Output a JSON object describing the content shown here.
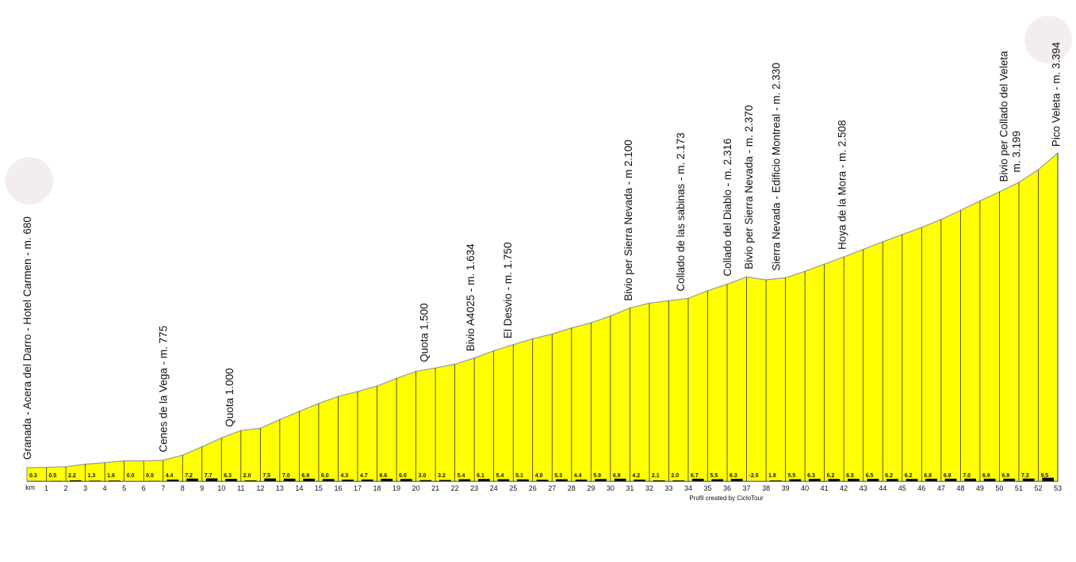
{
  "chart_data": {
    "type": "area",
    "x_label": "km",
    "credit": "Profil created by CicloTour",
    "color": "#ffff00",
    "x": [
      0,
      1,
      2,
      3,
      4,
      5,
      6,
      7,
      8,
      9,
      10,
      11,
      12,
      13,
      14,
      15,
      16,
      17,
      18,
      19,
      20,
      21,
      22,
      23,
      24,
      25,
      26,
      27,
      28,
      29,
      30,
      31,
      32,
      33,
      34,
      35,
      36,
      37,
      38,
      39,
      40,
      41,
      42,
      43,
      44,
      45,
      46,
      47,
      48,
      49,
      50,
      51,
      52,
      53
    ],
    "elevation": [
      680,
      683,
      688,
      710,
      723,
      739,
      739,
      744,
      788,
      860,
      937,
      1000,
      1020,
      1095,
      1165,
      1234,
      1294,
      1337,
      1384,
      1450,
      1510,
      1540,
      1572,
      1626,
      1687,
      1741,
      1792,
      1832,
      1885,
      1929,
      1988,
      2057,
      2099,
      2120,
      2140,
      2207,
      2262,
      2325,
      2300,
      2318,
      2373,
      2436,
      2498,
      2563,
      2628,
      2690,
      2752,
      2820,
      2900,
      2980,
      3060,
      3140,
      3250,
      3394
    ],
    "xticks": [
      1,
      2,
      3,
      4,
      5,
      6,
      7,
      8,
      9,
      10,
      11,
      12,
      13,
      14,
      15,
      16,
      17,
      18,
      19,
      20,
      21,
      22,
      23,
      24,
      25,
      26,
      27,
      28,
      29,
      30,
      31,
      32,
      33,
      34,
      35,
      36,
      37,
      38,
      39,
      40,
      41,
      42,
      43,
      44,
      45,
      46,
      47,
      48,
      49,
      50,
      51,
      52,
      53
    ],
    "gradients": [
      0.3,
      0.5,
      2.2,
      1.3,
      1.6,
      0.0,
      0.5,
      4.4,
      7.2,
      7.7,
      6.3,
      2.0,
      7.5,
      7.0,
      6.9,
      6.0,
      4.3,
      4.7,
      6.6,
      6.0,
      3.0,
      3.2,
      5.4,
      6.1,
      5.4,
      5.1,
      4.0,
      5.3,
      4.4,
      5.9,
      6.9,
      4.2,
      2.1,
      2.0,
      6.7,
      5.5,
      6.3,
      -2.5,
      1.8,
      5.5,
      6.3,
      6.2,
      6.5,
      6.5,
      6.2,
      6.2,
      6.8,
      6.9,
      7.0,
      6.9,
      6.9,
      7.3,
      9.5
    ],
    "gradient_labels": [
      "0.3",
      "0.5",
      "2.2",
      "1.3",
      "1.6",
      "0.0",
      "0.5",
      "4.4",
      "7.2",
      "7.7",
      "6.3",
      "2.0",
      "7.5",
      "7.0",
      "6.9",
      "6.0",
      "4.3",
      "4.7",
      "6.6",
      "6.0",
      "3.0",
      "3.2",
      "5.4",
      "6.1",
      "5.4",
      "5.1",
      "4.0",
      "5.3",
      "4.4",
      "5.9",
      "6.9",
      "4.2",
      "2.1",
      "2.0",
      "6.7",
      "5.5",
      "6.3",
      "-2.5",
      "1.8",
      "5.5",
      "6.3",
      "6.2",
      "6.5",
      "6.5",
      "6.2",
      "6.2",
      "6.8",
      "6.9",
      "7.0",
      "6.9",
      "6.9",
      "7.3",
      "9.5"
    ],
    "waypoints": [
      {
        "km": 0,
        "lines": [
          "Granada - Acera del Darro - Hotel Carmen - m.  680"
        ]
      },
      {
        "km": 7,
        "lines": [
          "Cenes de la Vega - m. 775"
        ]
      },
      {
        "km": 10.4,
        "lines": [
          "Quota 1.000"
        ]
      },
      {
        "km": 20.4,
        "lines": [
          "Quota 1.500"
        ]
      },
      {
        "km": 22.8,
        "lines": [
          "Bivio A4025 - m. 1.634"
        ]
      },
      {
        "km": 24.7,
        "lines": [
          "El Desvio - m. 1.750"
        ]
      },
      {
        "km": 30.9,
        "lines": [
          "Bivio per Sierra Nevada - m 2.100"
        ]
      },
      {
        "km": 33.6,
        "lines": [
          "Collado de las sabinas - m. 2.173"
        ]
      },
      {
        "km": 36,
        "lines": [
          "Collado del Diablo - m. 2.316"
        ]
      },
      {
        "km": 37.1,
        "lines": [
          "Bivio per Sierra Nevada - m. 2.370"
        ]
      },
      {
        "km": 38.5,
        "lines": [
          "Sierra Nevada - Edificio Montreal - m. 2.330"
        ]
      },
      {
        "km": 41.9,
        "lines": [
          "Hoya de la Mora - m. 2.508"
        ]
      },
      {
        "km": 50.2,
        "lines": [
          "Bivio per Collado del Veleta",
          "m. 3.199"
        ]
      },
      {
        "km": 52.9,
        "lines": [
          "Pico Veleta - m.  3.394"
        ]
      }
    ]
  }
}
